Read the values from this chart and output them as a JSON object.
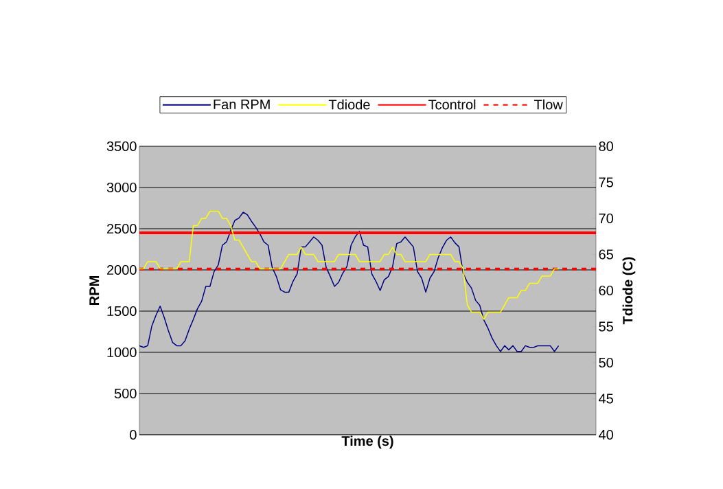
{
  "chart_data": {
    "type": "line",
    "xlabel": "Time (s)",
    "ylabel": "RPM",
    "y2label": "Tdiode (C)",
    "categories": [
      null,
      null,
      null,
      null,
      null,
      null,
      null,
      null,
      null,
      null,
      null,
      null,
      null,
      null,
      null,
      null,
      null,
      null,
      null,
      null,
      null,
      null,
      null,
      null,
      null,
      null,
      null,
      null,
      null,
      null,
      null,
      null,
      null,
      null,
      null,
      null,
      null,
      null,
      null,
      null,
      null,
      null,
      null,
      null,
      null,
      null,
      null,
      null,
      null,
      null,
      null,
      null,
      null,
      null,
      null,
      null,
      null,
      null,
      null,
      null,
      null,
      null,
      null,
      null,
      null,
      null,
      null,
      null,
      null,
      null,
      null,
      null,
      null,
      null,
      null,
      null,
      null,
      null,
      null,
      null,
      null,
      null,
      null,
      null,
      null,
      null,
      null,
      null,
      null,
      null,
      null,
      null,
      null,
      null,
      null,
      null,
      null,
      null,
      null,
      null,
      null,
      null,
      null,
      null,
      null,
      null,
      null,
      null,
      null,
      null,
      null
    ],
    "series": [
      {
        "name": "Fan RPM",
        "color": "#000080",
        "values": [
          1080,
          1060,
          1080,
          1320,
          1450,
          1560,
          1420,
          1260,
          1120,
          1080,
          1080,
          1140,
          1280,
          1400,
          1530,
          1620,
          1800,
          1800,
          1980,
          2060,
          2300,
          2340,
          2480,
          2600,
          2630,
          2700,
          2670,
          2590,
          2520,
          2440,
          2340,
          2300,
          2030,
          1920,
          1760,
          1730,
          1730,
          1860,
          1950,
          2280,
          2280,
          2340,
          2400,
          2360,
          2300,
          2030,
          1920,
          1800,
          1850,
          1960,
          2040,
          2300,
          2400,
          2470,
          2300,
          2280,
          1950,
          1860,
          1750,
          1880,
          1920,
          2040,
          2320,
          2340,
          2400,
          2340,
          2280,
          1980,
          1900,
          1730,
          1900,
          1980,
          2150,
          2270,
          2360,
          2400,
          2330,
          2280,
          1960,
          1850,
          1780,
          1630,
          1570,
          1390,
          1290,
          1170,
          1080,
          1010,
          1080,
          1030,
          1080,
          1010,
          1010,
          1080,
          1060,
          1060,
          1080,
          1080,
          1080,
          1080,
          1010,
          1080,
          null,
          null,
          null,
          null,
          null,
          null,
          null,
          null,
          null
        ]
      },
      {
        "name": "Tdiode",
        "color": "#ffff00",
        "axis": "y2",
        "values": [
          63,
          63,
          64,
          64,
          64,
          63,
          63,
          63,
          63,
          63,
          64,
          64,
          64,
          69,
          69,
          70,
          70,
          71,
          71,
          71,
          70,
          70,
          69,
          67,
          67,
          66,
          65,
          64,
          64,
          63,
          63,
          63,
          63,
          63,
          63,
          64,
          65,
          65,
          65,
          66,
          65,
          65,
          65,
          64,
          64,
          64,
          64,
          64,
          65,
          65,
          65,
          65,
          65,
          64,
          64,
          64,
          64,
          64,
          64,
          65,
          65,
          66,
          65,
          65,
          64,
          64,
          64,
          64,
          64,
          64,
          65,
          65,
          65,
          65,
          65,
          65,
          64,
          64,
          63,
          58,
          57,
          57,
          57,
          56,
          57,
          57,
          57,
          57,
          58,
          59,
          59,
          59,
          60,
          60,
          61,
          61,
          61,
          62,
          62,
          62,
          63,
          63,
          null,
          null,
          null,
          null,
          null,
          null,
          null,
          null,
          null
        ]
      }
    ],
    "ref_lines": [
      {
        "axis": "y2",
        "value": 68,
        "label": "Tcontrol",
        "color": "#ff0000",
        "line_style": "solid"
      },
      {
        "axis": "y2",
        "value": 63,
        "label": "Tlow",
        "color": "#ff0000",
        "line_style": "dashed"
      }
    ],
    "ylim": [
      0,
      3500
    ],
    "yticks": [
      0,
      500,
      1000,
      1500,
      2000,
      2500,
      3000,
      3500
    ],
    "y2lim": [
      40,
      80
    ],
    "y2ticks": [
      40,
      45,
      50,
      55,
      60,
      65,
      70,
      75,
      80
    ],
    "grid": "y",
    "legend": "top"
  }
}
